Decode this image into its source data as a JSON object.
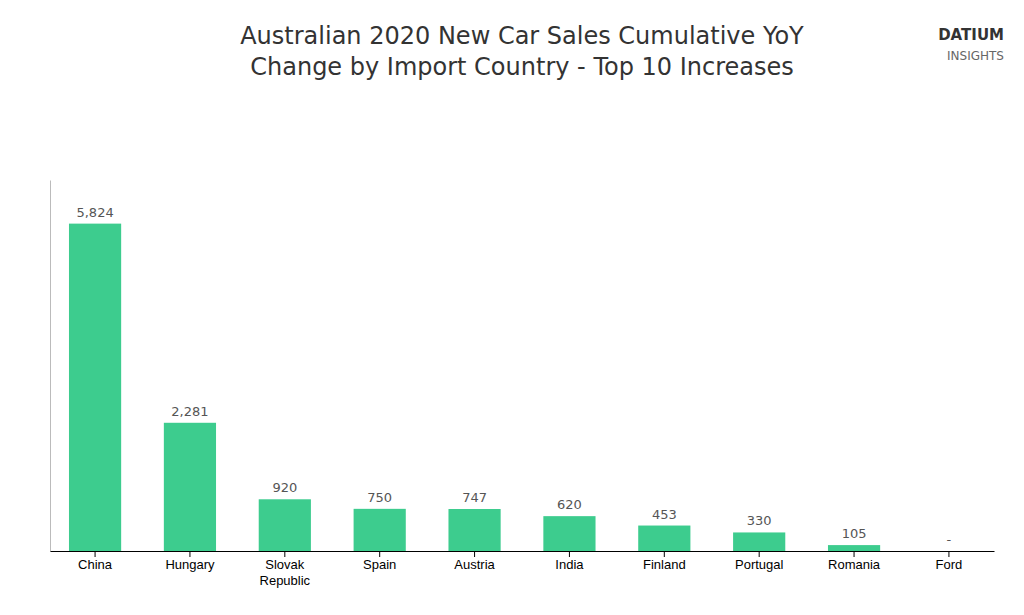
{
  "chart_data": {
    "type": "bar",
    "title": "Australian 2020 New Car Sales Cumulative YoY\nChange by Import Country - Top 10 Increases",
    "categories": [
      "China",
      "Hungary",
      "Slovak\nRepublic",
      "Spain",
      "Austria",
      "India",
      "Finland",
      "Portugal",
      "Romania",
      "Ford"
    ],
    "values": [
      5824,
      2281,
      920,
      750,
      747,
      620,
      453,
      330,
      105,
      0
    ],
    "value_labels": [
      "5,824",
      "2,281",
      "920",
      "750",
      "747",
      "620",
      "453",
      "330",
      "105",
      "-"
    ],
    "data_labels": true,
    "color": "#3dcc8e",
    "ylim": [
      0,
      6600
    ],
    "grid": false,
    "tick_labels": "x",
    "annotations": [
      "DATIUM",
      "INSIGHTS"
    ]
  }
}
